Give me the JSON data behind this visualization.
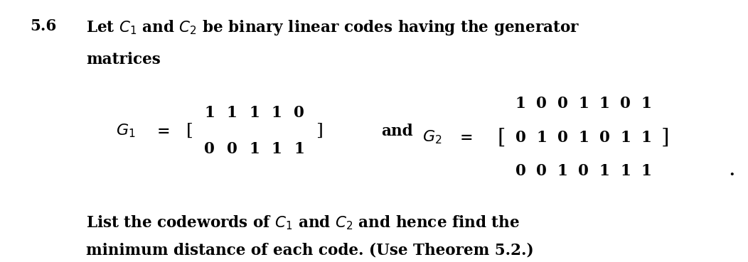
{
  "bg_color": "#ffffff",
  "figsize": [
    10.52,
    3.69
  ],
  "dpi": 100,
  "text_color": "#000000",
  "header_number": "5.6",
  "header_text": "Let $C_1$ and $C_2$ be binary linear codes having the generator",
  "header_text2": "matrices",
  "G1_label": "$G_1 = $",
  "G1_matrix": [
    [
      1,
      1,
      1,
      1,
      0
    ],
    [
      0,
      0,
      1,
      1,
      1
    ]
  ],
  "and_text": "and",
  "G2_label": "$G_2 = $",
  "G2_matrix": [
    [
      1,
      0,
      0,
      1,
      1,
      0,
      1
    ],
    [
      0,
      1,
      0,
      1,
      0,
      1,
      1
    ],
    [
      0,
      0,
      1,
      0,
      1,
      1,
      1
    ]
  ],
  "footer_text": "List the codewords of $C_1$ and $C_2$ and hence find the",
  "footer_text2": "minimum distance of each code. (Use Theorem 5.2.)"
}
